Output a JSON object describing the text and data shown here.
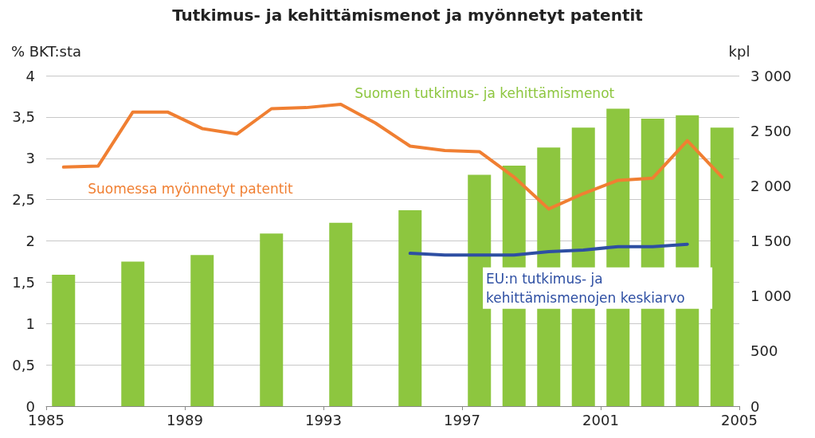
{
  "chart_data": {
    "type": "bar",
    "title": "Tutkimus- ja kehittämismenot ja myönnetyt patentit",
    "ylabel": "% BKT:sta",
    "y2label": "kpl",
    "xlim": [
      1985,
      2005
    ],
    "xticks": [
      1985,
      1989,
      1993,
      1997,
      2001,
      2005
    ],
    "ylim": [
      0,
      4
    ],
    "yticks": [
      0,
      {
        "value": 0.5,
        "label": "0,5"
      },
      1,
      {
        "value": 1.5,
        "label": "1,5"
      },
      2,
      {
        "value": 2.5,
        "label": "2,5"
      },
      3,
      {
        "value": 3.5,
        "label": "3,5"
      },
      4
    ],
    "y2lim": [
      0,
      3000
    ],
    "y2ticks": [
      0,
      500,
      {
        "value": 1000,
        "label": "1 000"
      },
      {
        "value": 1500,
        "label": "1 500"
      },
      {
        "value": 2000,
        "label": "2 000"
      },
      {
        "value": 2500,
        "label": "2 500"
      },
      {
        "value": 3000,
        "label": "3 000"
      }
    ],
    "grid": "y",
    "legend": false,
    "series": [
      {
        "name": "Suomen tutkimus- ja kehittämismenot",
        "color": "#8dc63f",
        "x": [
          1985.5,
          1987.5,
          1989.5,
          1991.5,
          1993.5,
          1995.5,
          1997.5,
          1998.5,
          1999.5,
          2000.5,
          2001.5,
          2002.5,
          2003.5,
          2004.5
        ],
        "values": [
          1.59,
          1.75,
          1.83,
          2.09,
          2.22,
          2.37,
          2.8,
          2.91,
          3.13,
          3.37,
          3.6,
          3.48,
          3.52,
          3.37
        ]
      },
      {
        "type": "line",
        "name": "Suomessa myönnetyt patentit",
        "color": "#f07f32",
        "axis": "y2",
        "x": [
          1985.5,
          1986.5,
          1987.5,
          1988.5,
          1989.5,
          1990.5,
          1991.5,
          1992.5,
          1993.5,
          1994.5,
          1995.5,
          1996.5,
          1997.5,
          1998.5,
          1999.5,
          2000.5,
          2001.5,
          2002.5,
          2003.5,
          2004.5
        ],
        "values": [
          2170,
          2180,
          2670,
          2670,
          2520,
          2470,
          2700,
          2710,
          2740,
          2570,
          2360,
          2320,
          2310,
          2080,
          1790,
          1930,
          2050,
          2070,
          2410,
          2080
        ]
      },
      {
        "type": "line",
        "name": "EU:n tutkimus- ja kehittämismenojen keskiarvo",
        "color": "#2e4fa3",
        "x": [
          1995.5,
          1996.5,
          1997.5,
          1998.5,
          1999.5,
          2000.5,
          2001.5,
          2002.5,
          2003.5
        ],
        "values": [
          1.85,
          1.83,
          1.83,
          1.83,
          1.87,
          1.89,
          1.93,
          1.93,
          1.96
        ]
      }
    ]
  }
}
